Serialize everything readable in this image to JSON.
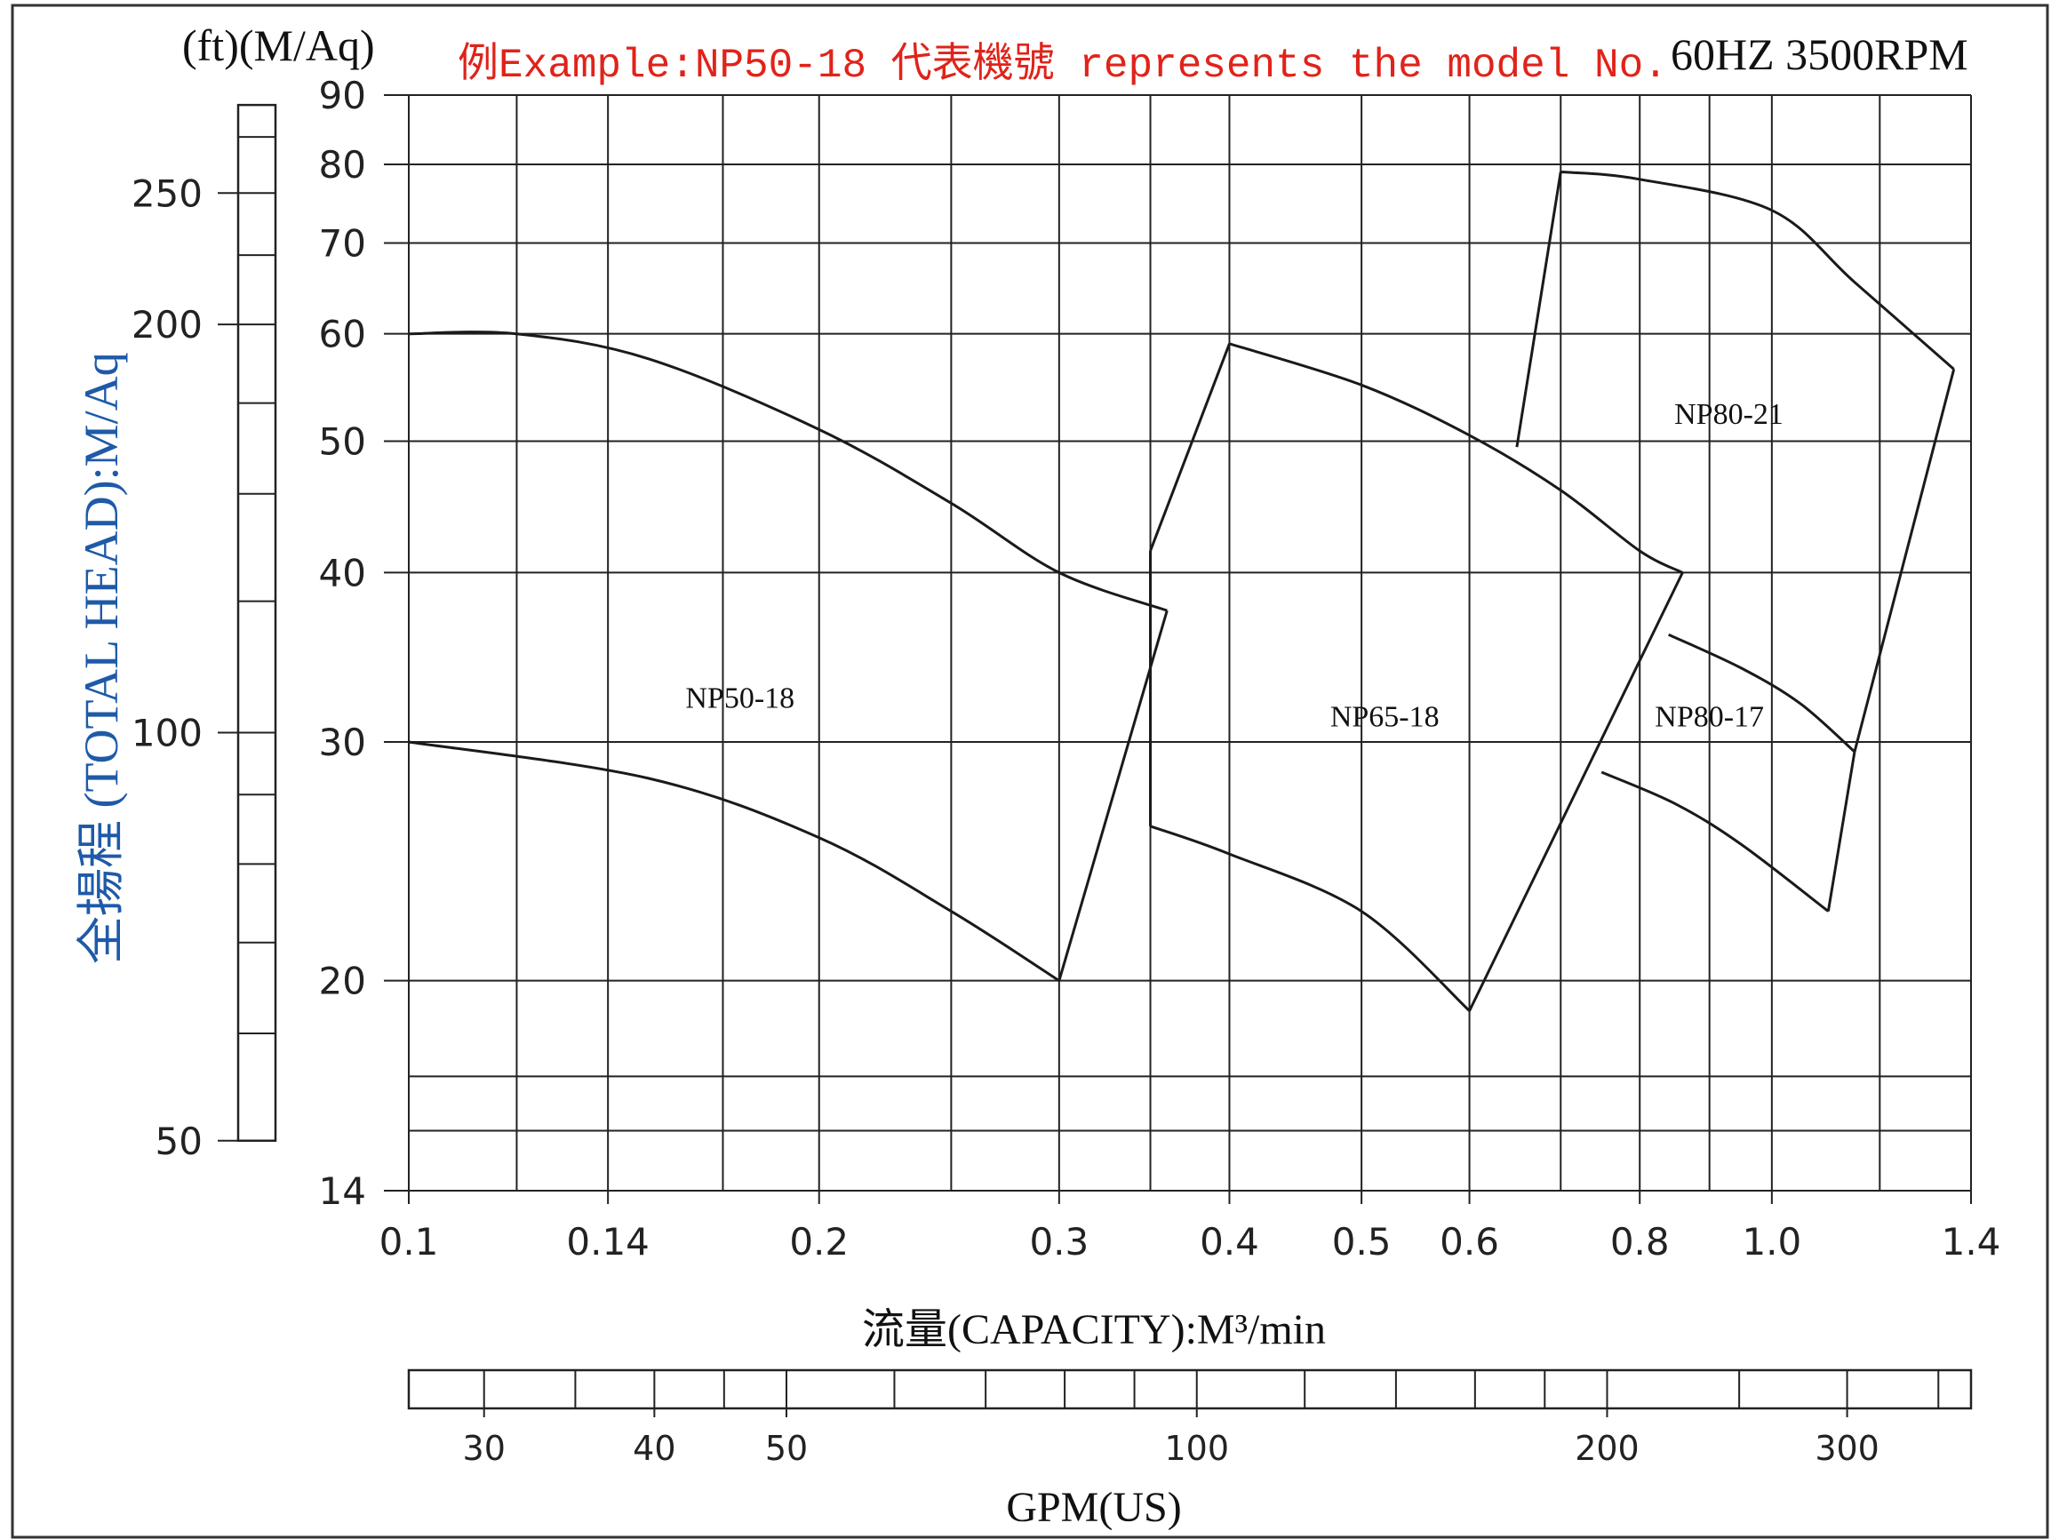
{
  "header": {
    "units_label": "(ft)(M/Aq)",
    "example_note": "例Example:NP50-18 代表機號 represents the model No.",
    "speed_label": "60HZ 3500RPM"
  },
  "chart_data": {
    "type": "line",
    "x_scale": "log",
    "y_scale": "log",
    "xlabel": "流量(CAPACITY):M³/min",
    "ylabel": "全揚程 (TOTAL HEAD):M/Aq",
    "xlim": [
      0.1,
      1.4
    ],
    "ylim": [
      14,
      90
    ],
    "x_ticks": [
      0.1,
      0.14,
      0.2,
      0.3,
      0.4,
      0.5,
      0.6,
      0.8,
      1.0,
      1.4
    ],
    "x_tick_labels": [
      "0.1",
      "0.14",
      "0.2",
      "0.3",
      "0.4",
      "0.5",
      "0.6",
      "0.8",
      "1.0",
      "1.4"
    ],
    "y_ticks": [
      14,
      20,
      30,
      40,
      50,
      60,
      70,
      80,
      90
    ],
    "y_tick_labels": [
      "14",
      "20",
      "30",
      "40",
      "50",
      "60",
      "70",
      "80",
      "90"
    ],
    "ft_ticks": [
      50,
      100,
      200,
      250
    ],
    "ft_tick_labels": [
      "50",
      "100",
      "200",
      "250"
    ],
    "gpm_label": "GPM(US)",
    "gpm_ticks": [
      30,
      40,
      50,
      100,
      200,
      300
    ],
    "gpm_tick_labels": [
      "30",
      "40",
      "50",
      "100",
      "200",
      "300"
    ],
    "grid": true,
    "series": [
      {
        "name": "NP50-18",
        "upper": [
          [
            0.1,
            60
          ],
          [
            0.12,
            60
          ],
          [
            0.15,
            57.5
          ],
          [
            0.2,
            51
          ],
          [
            0.25,
            45
          ],
          [
            0.3,
            40
          ],
          [
            0.36,
            37.5
          ]
        ],
        "lower": [
          [
            0.1,
            30
          ],
          [
            0.15,
            28.2
          ],
          [
            0.2,
            25.5
          ],
          [
            0.25,
            22.5
          ],
          [
            0.3,
            20
          ]
        ]
      },
      {
        "name": "NP65-18",
        "upper": [
          [
            0.4,
            59
          ],
          [
            0.5,
            55
          ],
          [
            0.6,
            50.5
          ],
          [
            0.7,
            46
          ],
          [
            0.8,
            41.5
          ],
          [
            0.86,
            40
          ]
        ],
        "lower": [
          [
            0.35,
            26
          ],
          [
            0.4,
            24.8
          ],
          [
            0.5,
            22.5
          ],
          [
            0.6,
            19
          ]
        ]
      },
      {
        "name": "NP80-21",
        "upper": [
          [
            0.7,
            79
          ],
          [
            0.8,
            78
          ],
          [
            1.0,
            74
          ],
          [
            1.15,
            65.5
          ],
          [
            1.36,
            56.5
          ]
        ],
        "lower": [
          [
            0.65,
            49.5
          ]
        ]
      },
      {
        "name": "NP80-17",
        "upper": [
          [
            0.84,
            36
          ],
          [
            0.95,
            34
          ],
          [
            1.05,
            32
          ],
          [
            1.15,
            29.5
          ]
        ],
        "lower": [
          [
            0.75,
            28.5
          ],
          [
            0.85,
            27
          ],
          [
            0.95,
            25.2
          ],
          [
            1.1,
            22.5
          ]
        ]
      }
    ]
  }
}
